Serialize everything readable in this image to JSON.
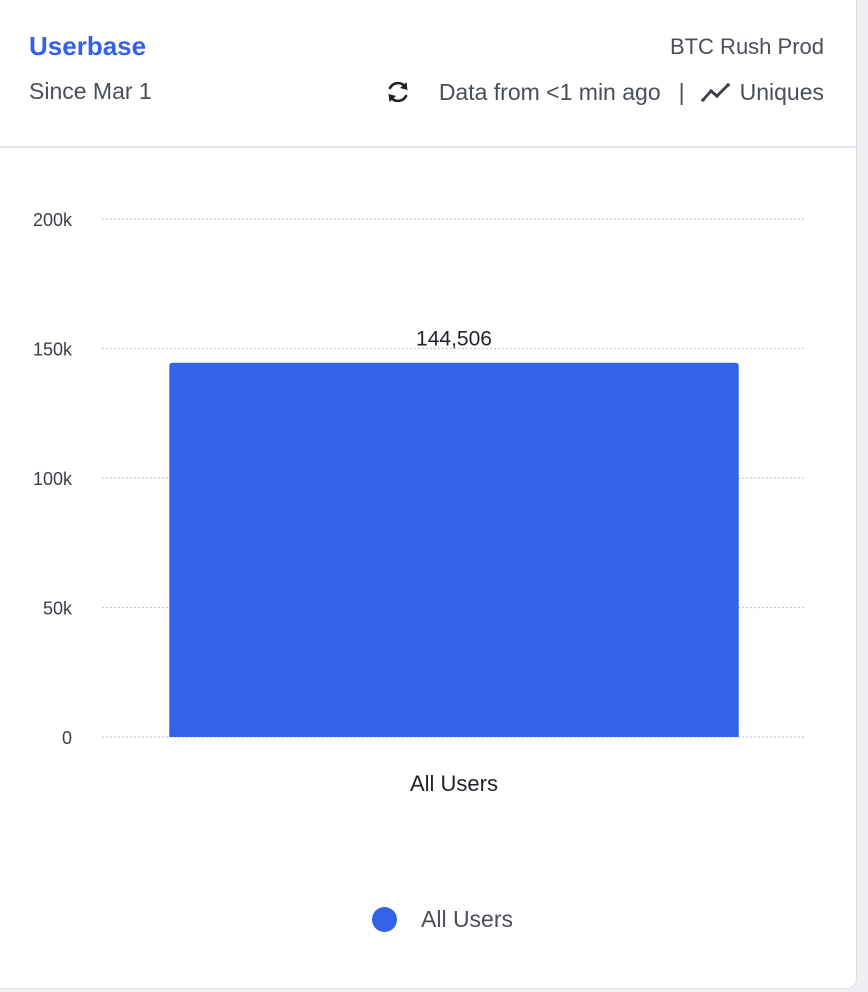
{
  "header": {
    "title": "Userbase",
    "subtitle": "Since Mar 1",
    "project": "BTC Rush Prod",
    "refresh_icon": "refresh-icon",
    "freshness": "Data from <1 min ago",
    "separator": "|",
    "metric_icon": "trend-line-icon",
    "metric_label": "Uniques"
  },
  "colors": {
    "accent": "#3462e7",
    "bar": "#3263e8",
    "text": "#4a4f57",
    "grid": "#c7cbd1"
  },
  "chart_data": {
    "type": "bar",
    "categories": [
      "All Users"
    ],
    "series": [
      {
        "name": "All Users",
        "values": [
          144506
        ]
      }
    ],
    "data_labels": [
      "144,506"
    ],
    "yticks": [
      0,
      50000,
      100000,
      150000,
      200000
    ],
    "ytick_labels": [
      "0",
      "50k",
      "100k",
      "150k",
      "200k"
    ],
    "ylim": [
      0,
      200000
    ],
    "grid": true,
    "legend_position": "bottom"
  },
  "legend": {
    "label": "All Users"
  }
}
